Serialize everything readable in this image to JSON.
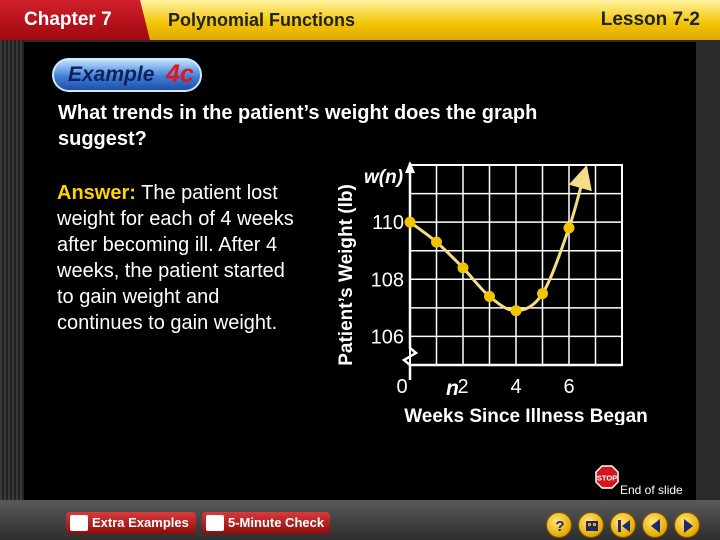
{
  "header": {
    "chapter": "Chapter 7",
    "title": "Polynomial Functions",
    "lesson": "Lesson 7-2"
  },
  "example": {
    "label": "Example",
    "number": "4c"
  },
  "question": "What trends in the patient’s weight does the graph suggest?",
  "answer": {
    "label": "Answer:",
    "text": " The patient lost weight for each of 4 weeks after becoming ill.  After 4 weeks, the patient started to gain weight and continues to gain weight."
  },
  "chart_data": {
    "type": "line",
    "xlabel": "Weeks Since Illness Began",
    "ylabel": "Patient’s Weight (lb)",
    "x_axis_var": "n",
    "y_axis_var": "w(n)",
    "x_ticks": [
      "0",
      "2",
      "4",
      "6"
    ],
    "y_ticks": [
      "106",
      "108",
      "110"
    ],
    "xlim": [
      0,
      8
    ],
    "ylim": [
      105,
      112
    ],
    "grid": true,
    "series": [
      {
        "x": [
          0,
          1,
          2,
          3,
          4,
          5,
          6
        ],
        "y": [
          110,
          109.3,
          108.4,
          107.4,
          106.9,
          107.5,
          109.8
        ]
      }
    ],
    "line_color": "#f5dc86",
    "point_color": "#f2c400"
  },
  "end_label": "End of slide",
  "stop_label": "STOP",
  "footer": {
    "extra_examples": "Extra Examples",
    "five_minute_check": "5-Minute Check"
  },
  "nav_icons": [
    "help-icon",
    "menu-icon",
    "first-icon",
    "previous-icon",
    "next-icon"
  ]
}
